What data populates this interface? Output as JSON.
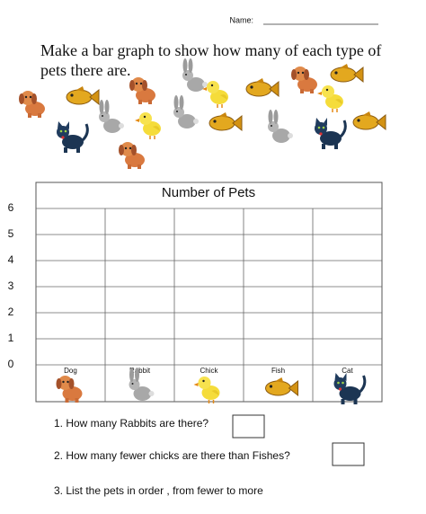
{
  "header": {
    "name_label": "Name:"
  },
  "instruction": [
    "Make a bar graph to show how many of each type of",
    "pets there are."
  ],
  "graph": {
    "title": "Number of Pets",
    "yticks": [
      0,
      1,
      2,
      3,
      4,
      5,
      6
    ],
    "categories": [
      "Dog",
      "Rabbit",
      "Chick",
      "Fish",
      "Cat"
    ]
  },
  "questions": [
    "1.  How many Rabbits are there?",
    "2.  How many fewer chicks are there than Fishes?",
    "3.  List the pets in order , from fewer to more"
  ]
}
